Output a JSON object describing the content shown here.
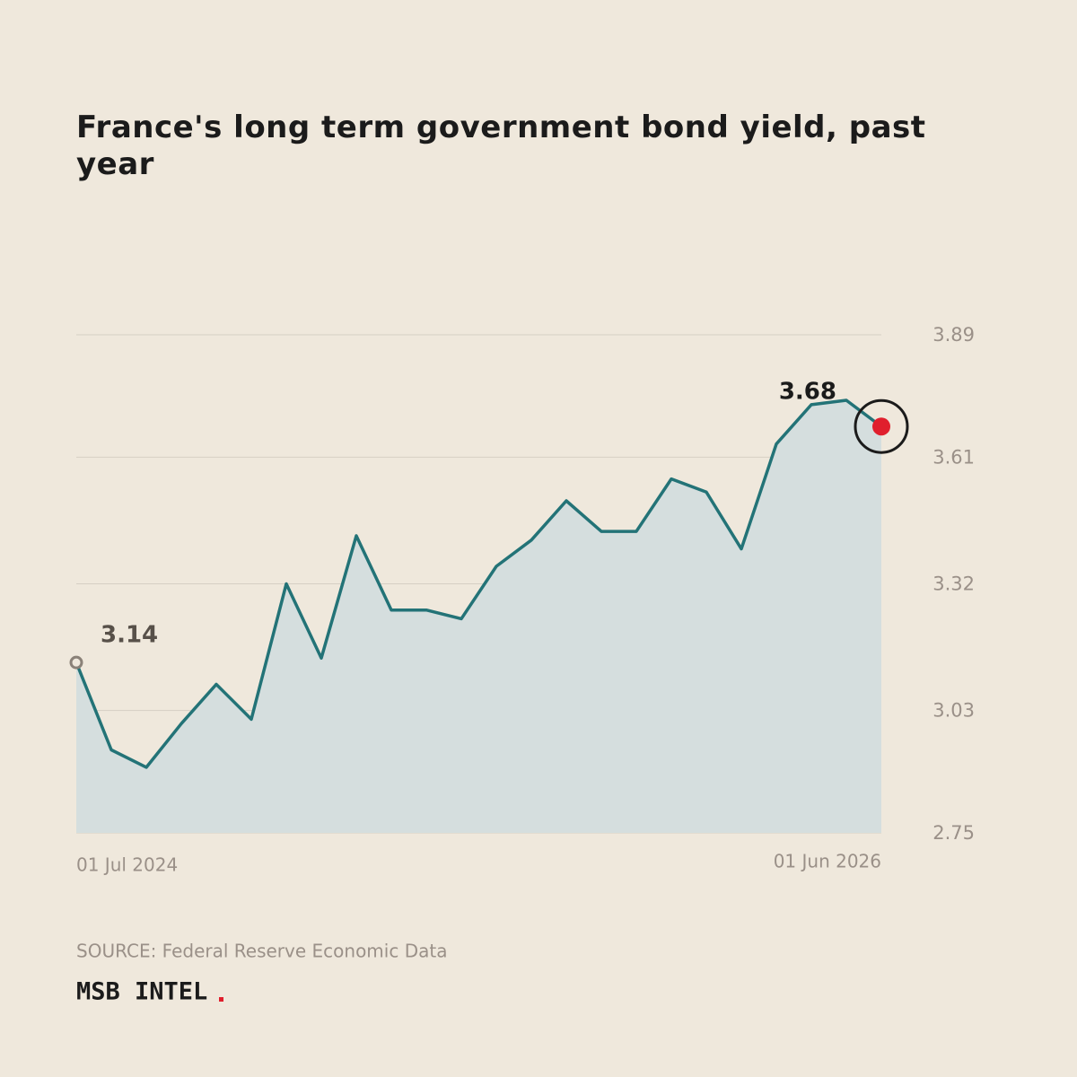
{
  "chart_data": {
    "type": "line",
    "title": "France's long term government bond yield, past year",
    "source": "SOURCE: Federal Reserve Economic Data",
    "brand": "MSB INTEL",
    "categories": [
      "01 Jul 2024",
      null,
      null,
      null,
      null,
      null,
      null,
      null,
      null,
      null,
      null,
      null,
      null,
      null,
      null,
      null,
      null,
      null,
      null,
      null,
      null,
      null,
      null,
      "01 Jun 2026"
    ],
    "values": [
      3.14,
      2.94,
      2.9,
      3.0,
      3.09,
      3.01,
      3.32,
      3.15,
      3.43,
      3.26,
      3.26,
      3.24,
      3.36,
      3.42,
      3.51,
      3.44,
      3.44,
      3.56,
      3.53,
      3.4,
      3.64,
      3.73,
      3.74,
      3.68
    ],
    "color": "#237377",
    "fill_color": "#d5dede",
    "highlight_color": "#e01f2d",
    "ylim": [
      2.75,
      3.89
    ],
    "yticks": [
      2.75,
      3.03,
      3.32,
      3.61,
      3.89
    ],
    "grid": true
  }
}
